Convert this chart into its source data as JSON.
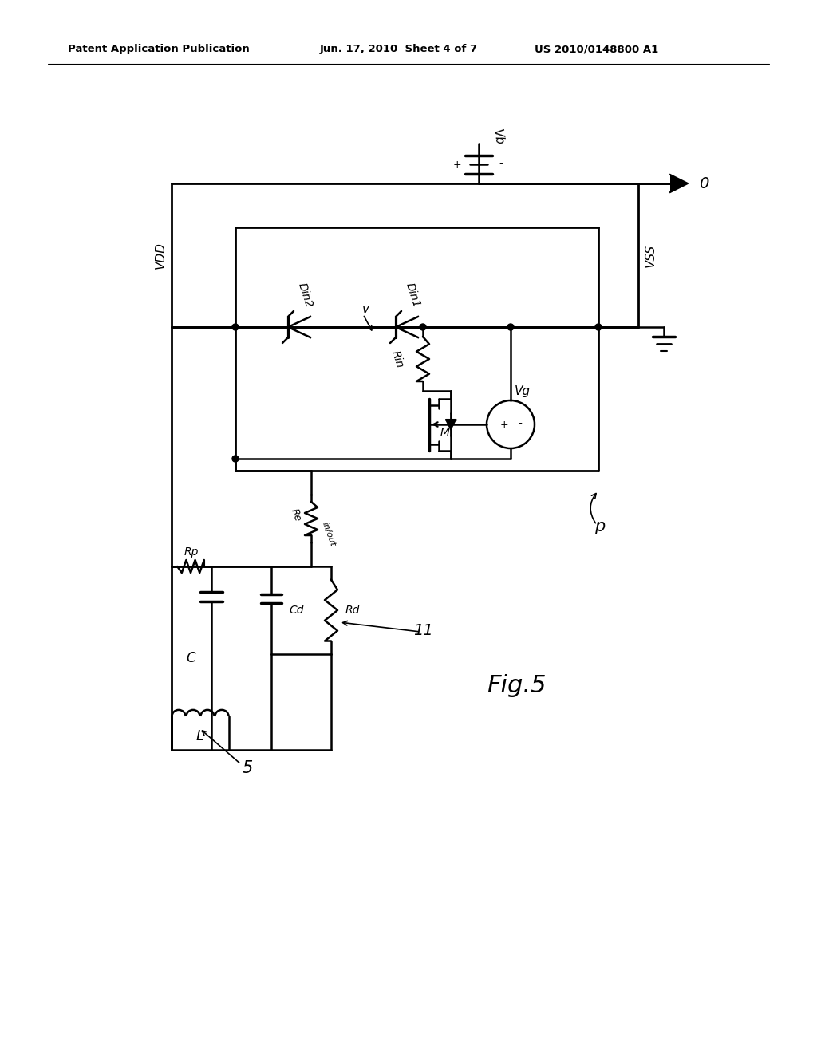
{
  "header_left": "Patent Application Publication",
  "header_center": "Jun. 17, 2010  Sheet 4 of 7",
  "header_right": "US 2010/0148800 A1",
  "bg": "#ffffff",
  "lc": "#000000"
}
